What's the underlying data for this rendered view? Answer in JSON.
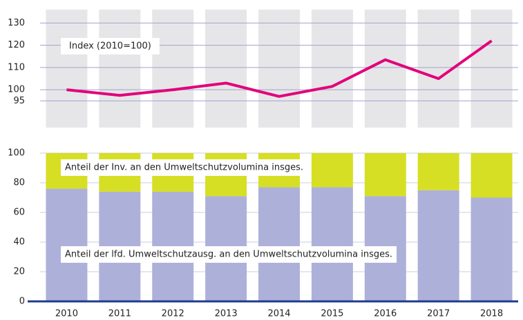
{
  "chart_data": [
    {
      "type": "line",
      "ylim": [
        83,
        136
      ],
      "yticks": [
        95,
        100,
        110,
        120,
        130
      ],
      "grid": true,
      "annotation": "Index (2010=100)",
      "series": [
        {
          "name": null,
          "color": "#e2007a",
          "values": [
            100,
            97.5,
            100,
            103,
            97,
            101.5,
            113.5,
            105,
            122
          ]
        }
      ]
    },
    {
      "type": "stacked_bar",
      "ylim": [
        0,
        100
      ],
      "yticks": [
        0,
        20,
        40,
        60,
        80,
        100
      ],
      "grid": true,
      "categories": [
        "2010",
        "2011",
        "2012",
        "2013",
        "2014",
        "2015",
        "2016",
        "2017",
        "2018"
      ],
      "series": [
        {
          "name": "Anteil der lfd. Umweltschutzausg. an den Umweltschutzvolumina insges.",
          "color": "#adb1d9",
          "values": [
            76,
            74,
            74,
            71,
            77,
            77,
            71,
            75,
            70
          ]
        },
        {
          "name": "Anteil der Inv. an den Umweltschutzvolumina insges.",
          "color": "#d6df23",
          "values": [
            24,
            26,
            26,
            29,
            23,
            23,
            29,
            25,
            30
          ]
        }
      ]
    }
  ]
}
